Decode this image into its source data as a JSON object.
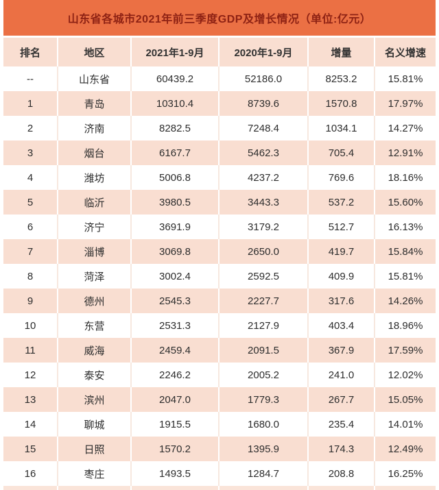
{
  "colors": {
    "title_bar_bg": "#EB7044",
    "title_text": "#8E2214",
    "stripe_bg": "#F9DED1",
    "separator_on_stripe": "#FFFFFF",
    "separator_on_white": "#F7E8DF",
    "body_text": "#2D2D2D"
  },
  "chart_data": {
    "type": "table",
    "title": "山东省各城市2021年前三季度GDP及增长情况（单位:亿元）",
    "unit": "亿元",
    "columns": [
      "排名",
      "地区",
      "2021年1-9月",
      "2020年1-9月",
      "增量",
      "名义增速"
    ],
    "column_keys": [
      "rank",
      "region",
      "gdp-2021",
      "gdp-2020",
      "increment",
      "nominal-growth"
    ],
    "rows": [
      [
        "--",
        "山东省",
        "60439.2",
        "52186.0",
        "8253.2",
        "15.81%"
      ],
      [
        "1",
        "青岛",
        "10310.4",
        "8739.6",
        "1570.8",
        "17.97%"
      ],
      [
        "2",
        "济南",
        "8282.5",
        "7248.4",
        "1034.1",
        "14.27%"
      ],
      [
        "3",
        "烟台",
        "6167.7",
        "5462.3",
        "705.4",
        "12.91%"
      ],
      [
        "4",
        "潍坊",
        "5006.8",
        "4237.2",
        "769.6",
        "18.16%"
      ],
      [
        "5",
        "临沂",
        "3980.5",
        "3443.3",
        "537.2",
        "15.60%"
      ],
      [
        "6",
        "济宁",
        "3691.9",
        "3179.2",
        "512.7",
        "16.13%"
      ],
      [
        "7",
        "淄博",
        "3069.8",
        "2650.0",
        "419.7",
        "15.84%"
      ],
      [
        "8",
        "菏泽",
        "3002.4",
        "2592.5",
        "409.9",
        "15.81%"
      ],
      [
        "9",
        "德州",
        "2545.3",
        "2227.7",
        "317.6",
        "14.26%"
      ],
      [
        "10",
        "东营",
        "2531.3",
        "2127.9",
        "403.4",
        "18.96%"
      ],
      [
        "11",
        "威海",
        "2459.4",
        "2091.5",
        "367.9",
        "17.59%"
      ],
      [
        "12",
        "泰安",
        "2246.2",
        "2005.2",
        "241.0",
        "12.02%"
      ],
      [
        "13",
        "滨州",
        "2047.0",
        "1779.3",
        "267.7",
        "15.05%"
      ],
      [
        "14",
        "聊城",
        "1915.5",
        "1680.0",
        "235.4",
        "14.01%"
      ],
      [
        "15",
        "日照",
        "1570.2",
        "1395.9",
        "174.3",
        "12.49%"
      ],
      [
        "16",
        "枣庄",
        "1493.5",
        "1284.7",
        "208.8",
        "16.25%"
      ]
    ]
  }
}
